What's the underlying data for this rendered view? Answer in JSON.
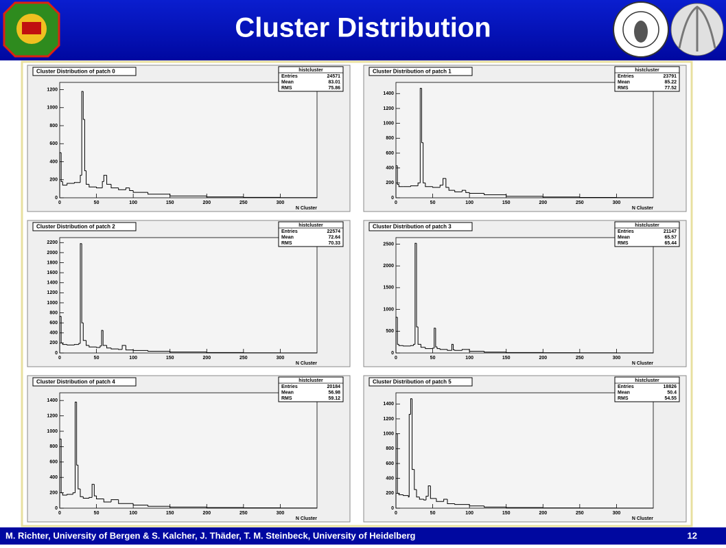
{
  "slide": {
    "title": "Cluster Distribution",
    "footer": "M. Richter, University of Bergen & S. Kalcher, J.  Thäder, T. M. Steinbeck, University of Heidelberg",
    "page": "12"
  },
  "chart_data": [
    {
      "type": "histogram",
      "title": "Cluster Distribution of patch 0",
      "x_label": "N Cluster",
      "color": "#000000",
      "bins": [
        0,
        2,
        4,
        10,
        20,
        28,
        30,
        32,
        34,
        36,
        40,
        50,
        58,
        60,
        64,
        70,
        80,
        90,
        95,
        100,
        120,
        150,
        200,
        250,
        300,
        350
      ],
      "values": [
        500,
        180,
        140,
        160,
        170,
        250,
        1180,
        870,
        300,
        150,
        120,
        110,
        180,
        250,
        150,
        110,
        90,
        110,
        80,
        60,
        40,
        20,
        10,
        5,
        2
      ],
      "xlim": [
        0,
        350
      ],
      "xticks": [
        0,
        50,
        100,
        150,
        200,
        250,
        300
      ],
      "ylim": [
        0,
        1280
      ],
      "yticks": [
        0,
        200,
        400,
        600,
        800,
        1000,
        1200
      ],
      "stats": {
        "name": "histcluster",
        "labels": [
          "Entries",
          "Mean",
          "RMS"
        ],
        "values": [
          24571,
          83.01,
          75.86
        ]
      }
    },
    {
      "type": "histogram",
      "title": "Cluster Distribution of patch 1",
      "x_label": "N Cluster",
      "color": "#000000",
      "bins": [
        0,
        2,
        4,
        10,
        20,
        30,
        33,
        35,
        37,
        40,
        50,
        60,
        64,
        68,
        72,
        80,
        90,
        95,
        100,
        120,
        150,
        200,
        250,
        300,
        350
      ],
      "values": [
        430,
        180,
        150,
        150,
        160,
        200,
        1470,
        740,
        200,
        150,
        140,
        170,
        260,
        140,
        100,
        80,
        100,
        70,
        60,
        40,
        20,
        10,
        5,
        2
      ],
      "xlim": [
        0,
        350
      ],
      "xticks": [
        0,
        50,
        100,
        150,
        200,
        250,
        300
      ],
      "ylim": [
        0,
        1550
      ],
      "yticks": [
        0,
        200,
        400,
        600,
        800,
        1000,
        1200,
        1400
      ],
      "stats": {
        "name": "histcluster",
        "labels": [
          "Entries",
          "Mean",
          "RMS"
        ],
        "values": [
          23791,
          85.22,
          77.52
        ]
      }
    },
    {
      "type": "histogram",
      "title": "Cluster Distribution of patch 2",
      "x_label": "N Cluster",
      "color": "#000000",
      "bins": [
        0,
        2,
        4,
        10,
        20,
        26,
        28,
        30,
        32,
        36,
        40,
        50,
        55,
        57,
        59,
        64,
        70,
        80,
        85,
        90,
        100,
        120,
        150,
        200,
        250,
        300,
        350
      ],
      "values": [
        730,
        200,
        170,
        160,
        170,
        190,
        2180,
        600,
        250,
        150,
        120,
        110,
        140,
        450,
        150,
        100,
        80,
        70,
        150,
        60,
        50,
        35,
        18,
        8,
        4,
        2
      ],
      "xlim": [
        0,
        350
      ],
      "xticks": [
        0,
        50,
        100,
        150,
        200,
        250,
        300
      ],
      "ylim": [
        0,
        2300
      ],
      "yticks": [
        0,
        200,
        400,
        600,
        800,
        1000,
        1200,
        1400,
        1600,
        1800,
        2000,
        2200
      ],
      "stats": {
        "name": "histcluster",
        "labels": [
          "Entries",
          "Mean",
          "RMS"
        ],
        "values": [
          22574,
          72.64,
          70.33
        ]
      }
    },
    {
      "type": "histogram",
      "title": "Cluster Distribution of patch 3",
      "x_label": "N Cluster",
      "color": "#000000",
      "bins": [
        0,
        2,
        4,
        10,
        20,
        24,
        26,
        28,
        30,
        34,
        40,
        50,
        52,
        54,
        56,
        60,
        70,
        76,
        78,
        80,
        90,
        100,
        120,
        150,
        200,
        250,
        300,
        350
      ],
      "values": [
        820,
        200,
        170,
        160,
        170,
        200,
        2520,
        600,
        200,
        130,
        100,
        110,
        570,
        140,
        100,
        80,
        60,
        200,
        70,
        60,
        80,
        40,
        20,
        10,
        5,
        3,
        1
      ],
      "xlim": [
        0,
        350
      ],
      "xticks": [
        0,
        50,
        100,
        150,
        200,
        250,
        300
      ],
      "ylim": [
        0,
        2650
      ],
      "yticks": [
        0,
        500,
        1000,
        1500,
        2000,
        2500
      ],
      "stats": {
        "name": "histcluster",
        "labels": [
          "Entries",
          "Mean",
          "RMS"
        ],
        "values": [
          21147,
          65.57,
          65.44
        ]
      }
    },
    {
      "type": "histogram",
      "title": "Cluster Distribution of patch 4",
      "x_label": "N Cluster",
      "color": "#000000",
      "bins": [
        0,
        2,
        4,
        10,
        18,
        21,
        23,
        25,
        28,
        32,
        40,
        44,
        47,
        50,
        60,
        70,
        80,
        100,
        120,
        150,
        200,
        250,
        300,
        350
      ],
      "values": [
        900,
        200,
        170,
        180,
        200,
        1380,
        560,
        250,
        150,
        130,
        140,
        310,
        160,
        120,
        80,
        110,
        60,
        40,
        25,
        15,
        8,
        4,
        2
      ],
      "xlim": [
        0,
        350
      ],
      "xticks": [
        0,
        50,
        100,
        150,
        200,
        250,
        300
      ],
      "ylim": [
        0,
        1500
      ],
      "yticks": [
        0,
        200,
        400,
        600,
        800,
        1000,
        1200,
        1400
      ],
      "stats": {
        "name": "histcluster",
        "labels": [
          "Entries",
          "Mean",
          "RMS"
        ],
        "values": [
          20184,
          56.98,
          59.12
        ]
      }
    },
    {
      "type": "histogram",
      "title": "Cluster Distribution of patch 5",
      "x_label": "N Cluster",
      "color": "#000000",
      "bins": [
        0,
        2,
        4,
        10,
        17,
        18,
        20,
        22,
        25,
        28,
        32,
        38,
        41,
        44,
        47,
        55,
        65,
        70,
        80,
        100,
        120,
        150,
        200,
        250,
        300,
        350
      ],
      "values": [
        1000,
        200,
        180,
        170,
        150,
        1260,
        1470,
        520,
        250,
        150,
        120,
        110,
        160,
        300,
        130,
        90,
        120,
        60,
        50,
        30,
        15,
        8,
        4,
        2,
        1
      ],
      "xlim": [
        0,
        350
      ],
      "xticks": [
        0,
        50,
        100,
        150,
        200,
        250,
        300
      ],
      "ylim": [
        0,
        1550
      ],
      "yticks": [
        0,
        200,
        400,
        600,
        800,
        1000,
        1200,
        1400
      ],
      "stats": {
        "name": "histcluster",
        "labels": [
          "Entries",
          "Mean",
          "RMS"
        ],
        "values": [
          18826,
          50.4,
          54.55
        ]
      }
    }
  ]
}
